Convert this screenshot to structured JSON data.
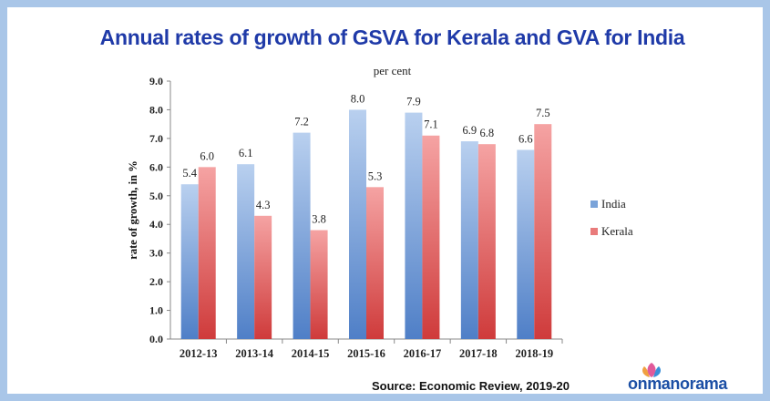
{
  "header": {
    "title": "Annual rates of growth of GSVA for Kerala and GVA for India",
    "subtitle": "per cent"
  },
  "footer": {
    "source": "Source: Economic Review, 2019-20",
    "logo_text": "onmanorama"
  },
  "colors": {
    "india": "#8fb3e0",
    "kerala": "#e98a8a",
    "title": "#1f3aa8",
    "frame": "#a9c6e8"
  },
  "chart_data": {
    "type": "bar",
    "title": "Annual rates of growth of GSVA for Kerala and GVA for India",
    "subtitle": "per cent",
    "xlabel": "",
    "ylabel": "rate of growth, in %",
    "ylim": [
      0,
      9
    ],
    "yticks": [
      "0.0",
      "1.0",
      "2.0",
      "3.0",
      "4.0",
      "5.0",
      "6.0",
      "7.0",
      "8.0",
      "9.0"
    ],
    "categories": [
      "2012-13",
      "2013-14",
      "2014-15",
      "2015-16",
      "2016-17",
      "2017-18",
      "2018-19"
    ],
    "series": [
      {
        "name": "India",
        "values": [
          5.4,
          6.1,
          7.2,
          8.0,
          7.9,
          6.9,
          6.6
        ],
        "labels": [
          "5.4",
          "6.1",
          "7.2",
          "8.0",
          "7.9",
          "6.9",
          "6.6"
        ]
      },
      {
        "name": "Kerala",
        "values": [
          6.0,
          4.3,
          3.8,
          5.3,
          7.1,
          6.8,
          7.5
        ],
        "labels": [
          "6.0",
          "4.3",
          "3.8",
          "5.3",
          "7.1",
          "6.8",
          "7.5"
        ]
      }
    ],
    "legend": "right",
    "grid": false
  }
}
